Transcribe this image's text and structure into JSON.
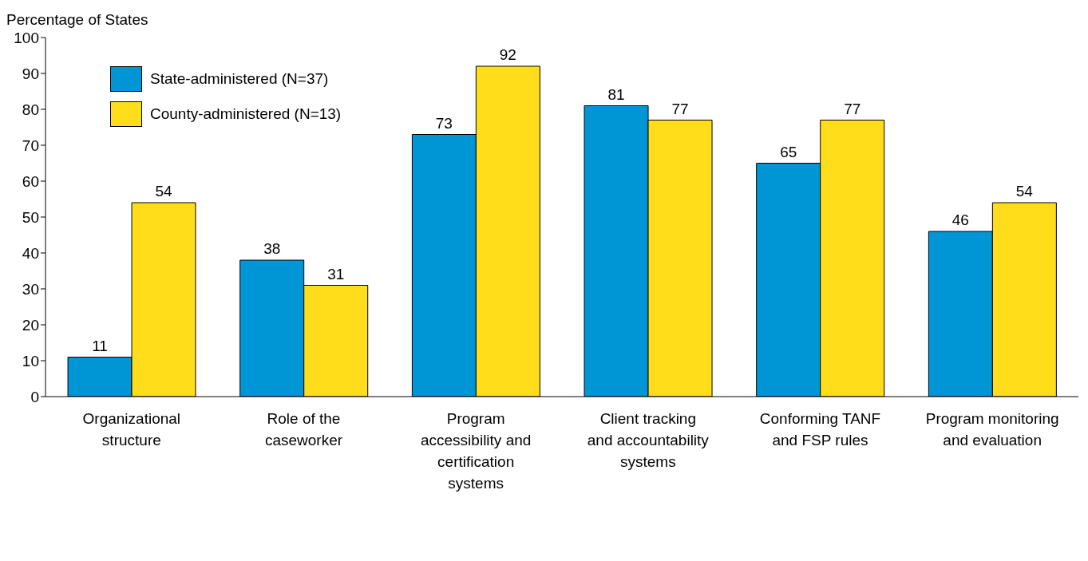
{
  "chart_data": {
    "type": "bar",
    "ylabel": "Percentage of States",
    "categories": [
      "Organizational structure",
      "Role of the caseworker",
      "Program accessibility and certification systems",
      "Client tracking and accountability systems",
      "Conforming TANF and FSP rules",
      "Program monitoring and evaluation"
    ],
    "series": [
      {
        "name": "State-administered (N=37)",
        "color": "#0096d6",
        "values": [
          11,
          38,
          73,
          81,
          65,
          46
        ]
      },
      {
        "name": "County-administered (N=13)",
        "color": "#ffdd1a",
        "values": [
          54,
          31,
          92,
          77,
          77,
          54
        ]
      }
    ],
    "ylim": [
      0,
      100
    ],
    "yticks": [
      0,
      10,
      20,
      30,
      40,
      50,
      60,
      70,
      80,
      90,
      100
    ],
    "grid": false,
    "legend": "top left",
    "data_labels": true
  }
}
